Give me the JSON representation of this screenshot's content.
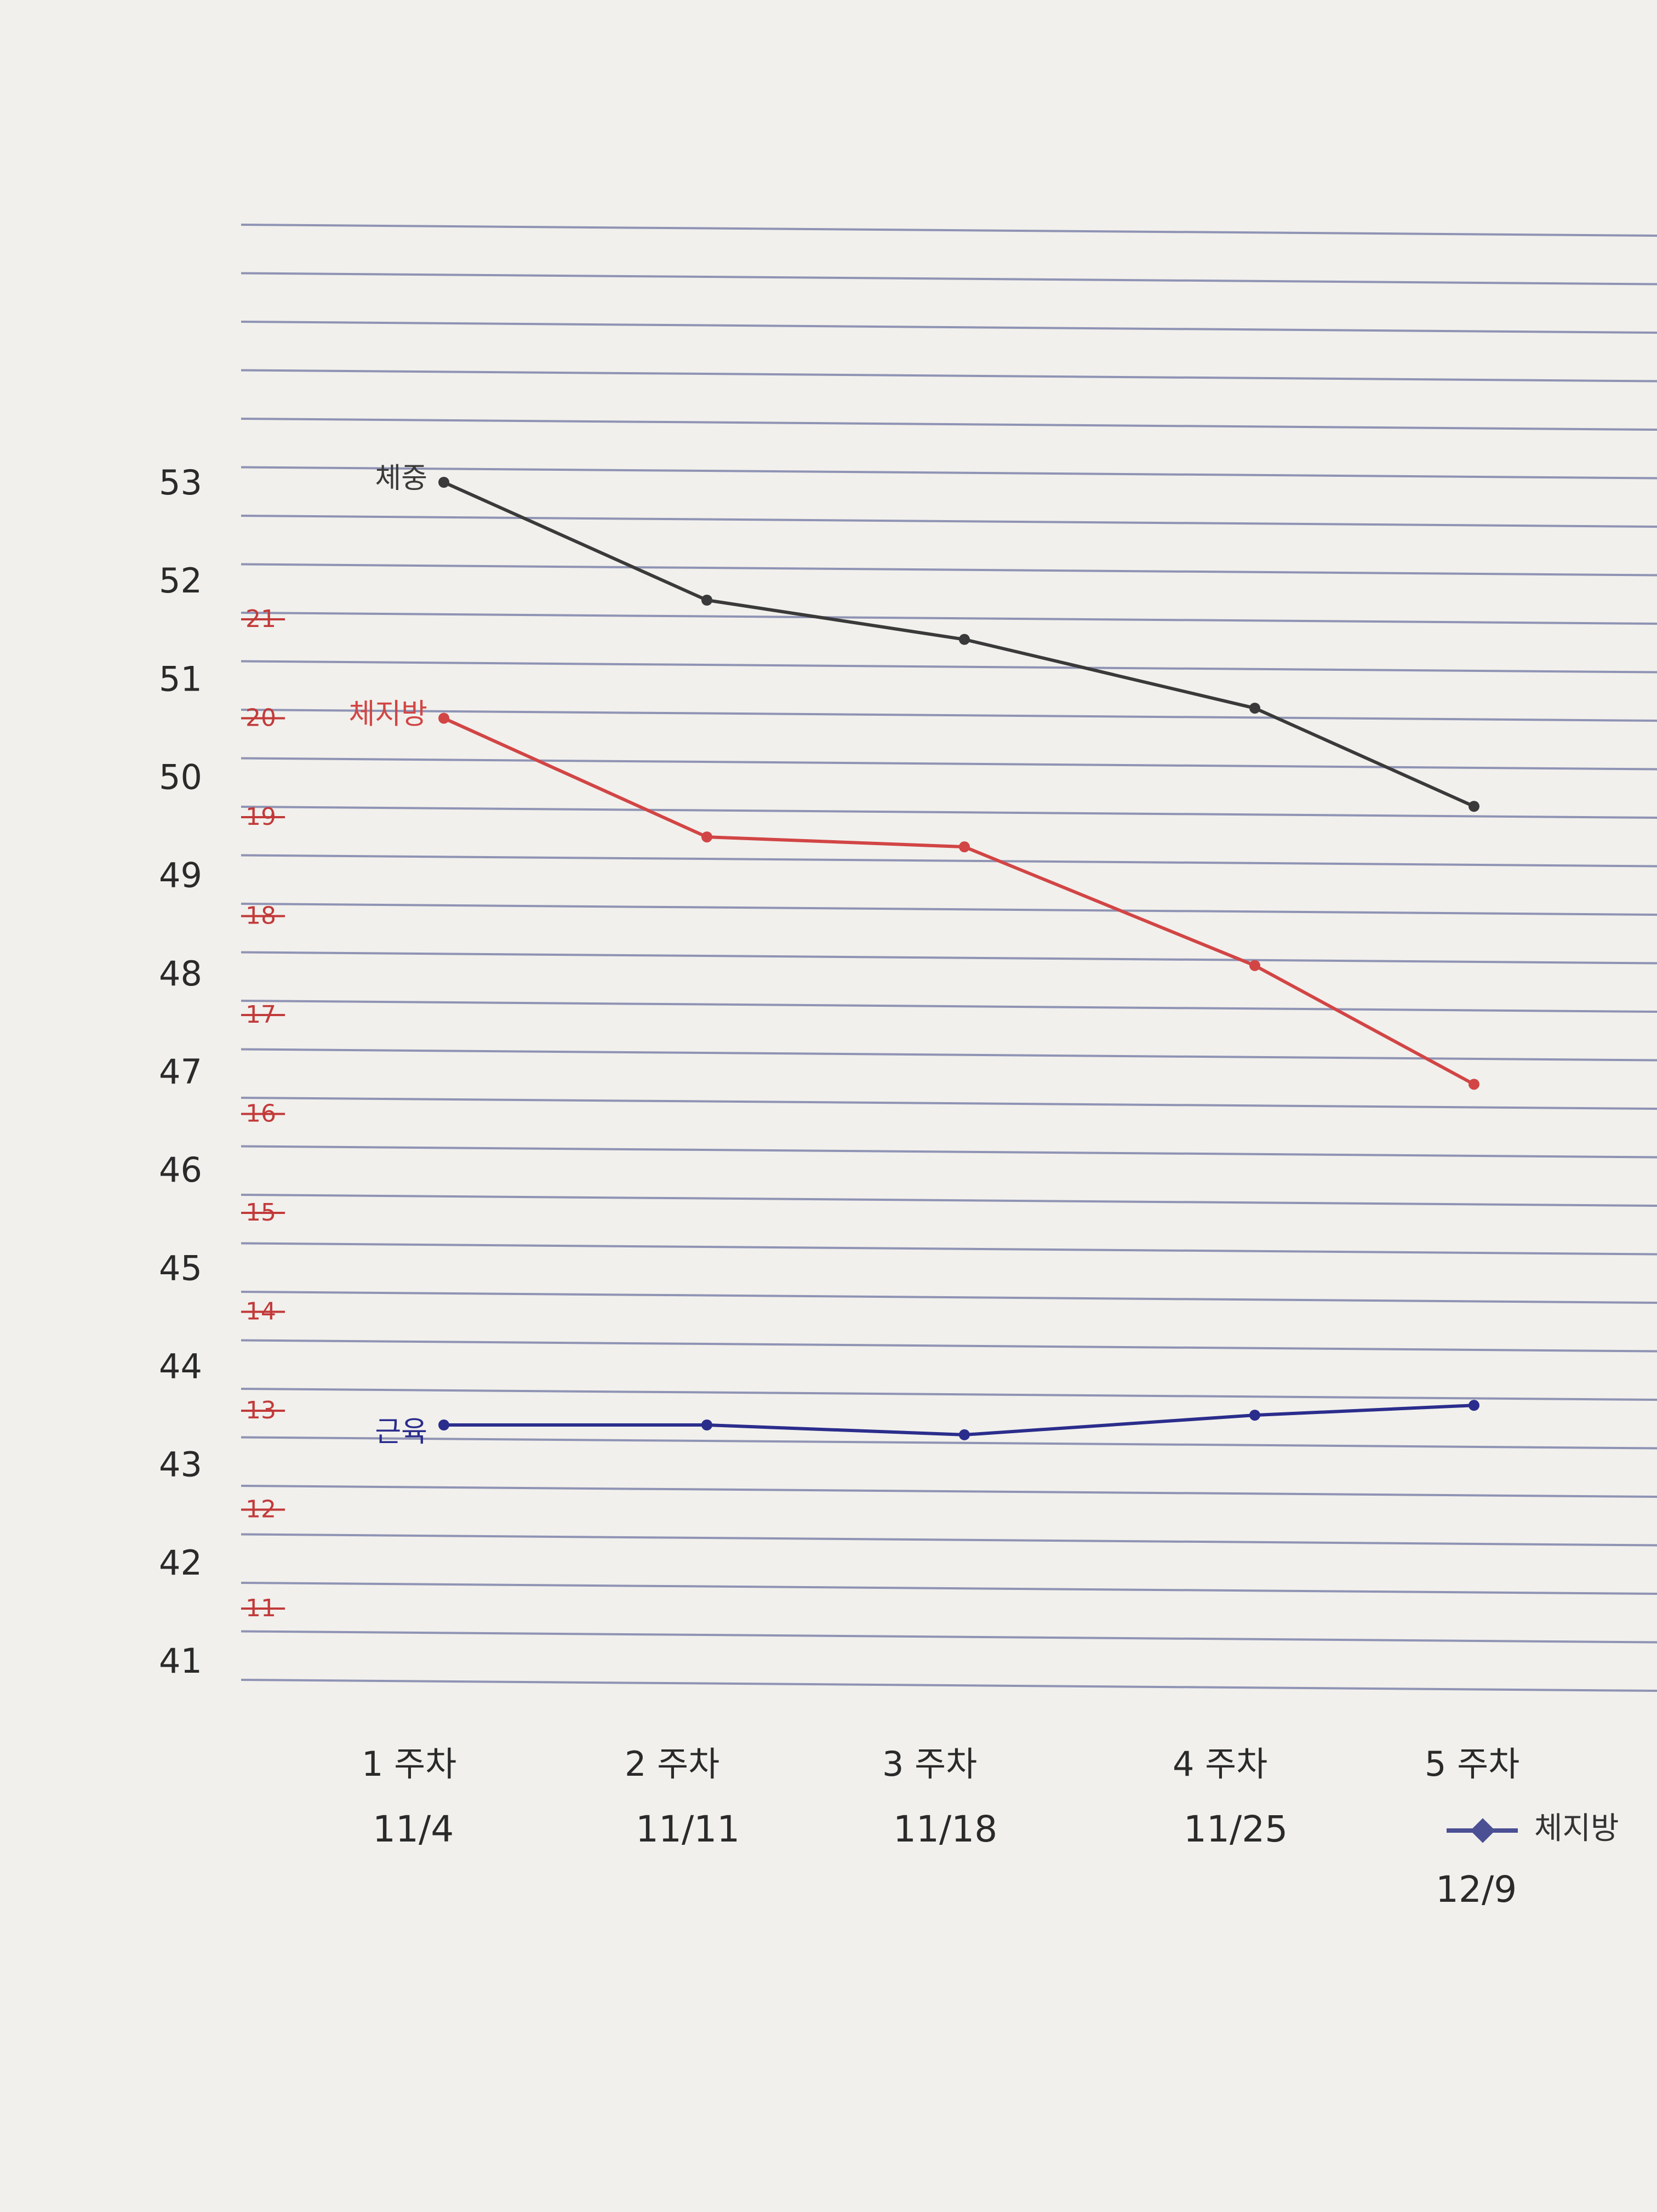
{
  "chart_data": {
    "type": "line",
    "x": [
      "1 주차",
      "2 주차",
      "3 주차",
      "4 주차",
      "5 주차"
    ],
    "x_dates": [
      "11/4",
      "11/11",
      "11/18",
      "11/25",
      "12/9"
    ],
    "y_left_ticks": [
      53,
      52,
      51,
      50,
      49,
      48,
      47,
      46,
      45,
      44,
      43,
      42,
      41
    ],
    "y_right_ticks": [
      21,
      20,
      19,
      18,
      17,
      16,
      15,
      14,
      13,
      12,
      11
    ],
    "ylim_left": [
      41,
      53
    ],
    "ylim_right": [
      11,
      21
    ],
    "grid": true,
    "legend": {
      "label": "체지방",
      "position": "bottom-right"
    },
    "series": [
      {
        "name": "체중",
        "axis": "left",
        "color": "#3a3a3a",
        "values": [
          53.0,
          51.8,
          51.4,
          50.7,
          49.7
        ]
      },
      {
        "name": "체지방",
        "axis": "right",
        "color": "#d24545",
        "values": [
          20.0,
          18.8,
          18.7,
          17.5,
          16.3
        ]
      },
      {
        "name": "근육",
        "axis": "left",
        "color": "#2b2d8c",
        "values": [
          43.4,
          43.4,
          43.3,
          43.5,
          43.6
        ]
      }
    ]
  }
}
